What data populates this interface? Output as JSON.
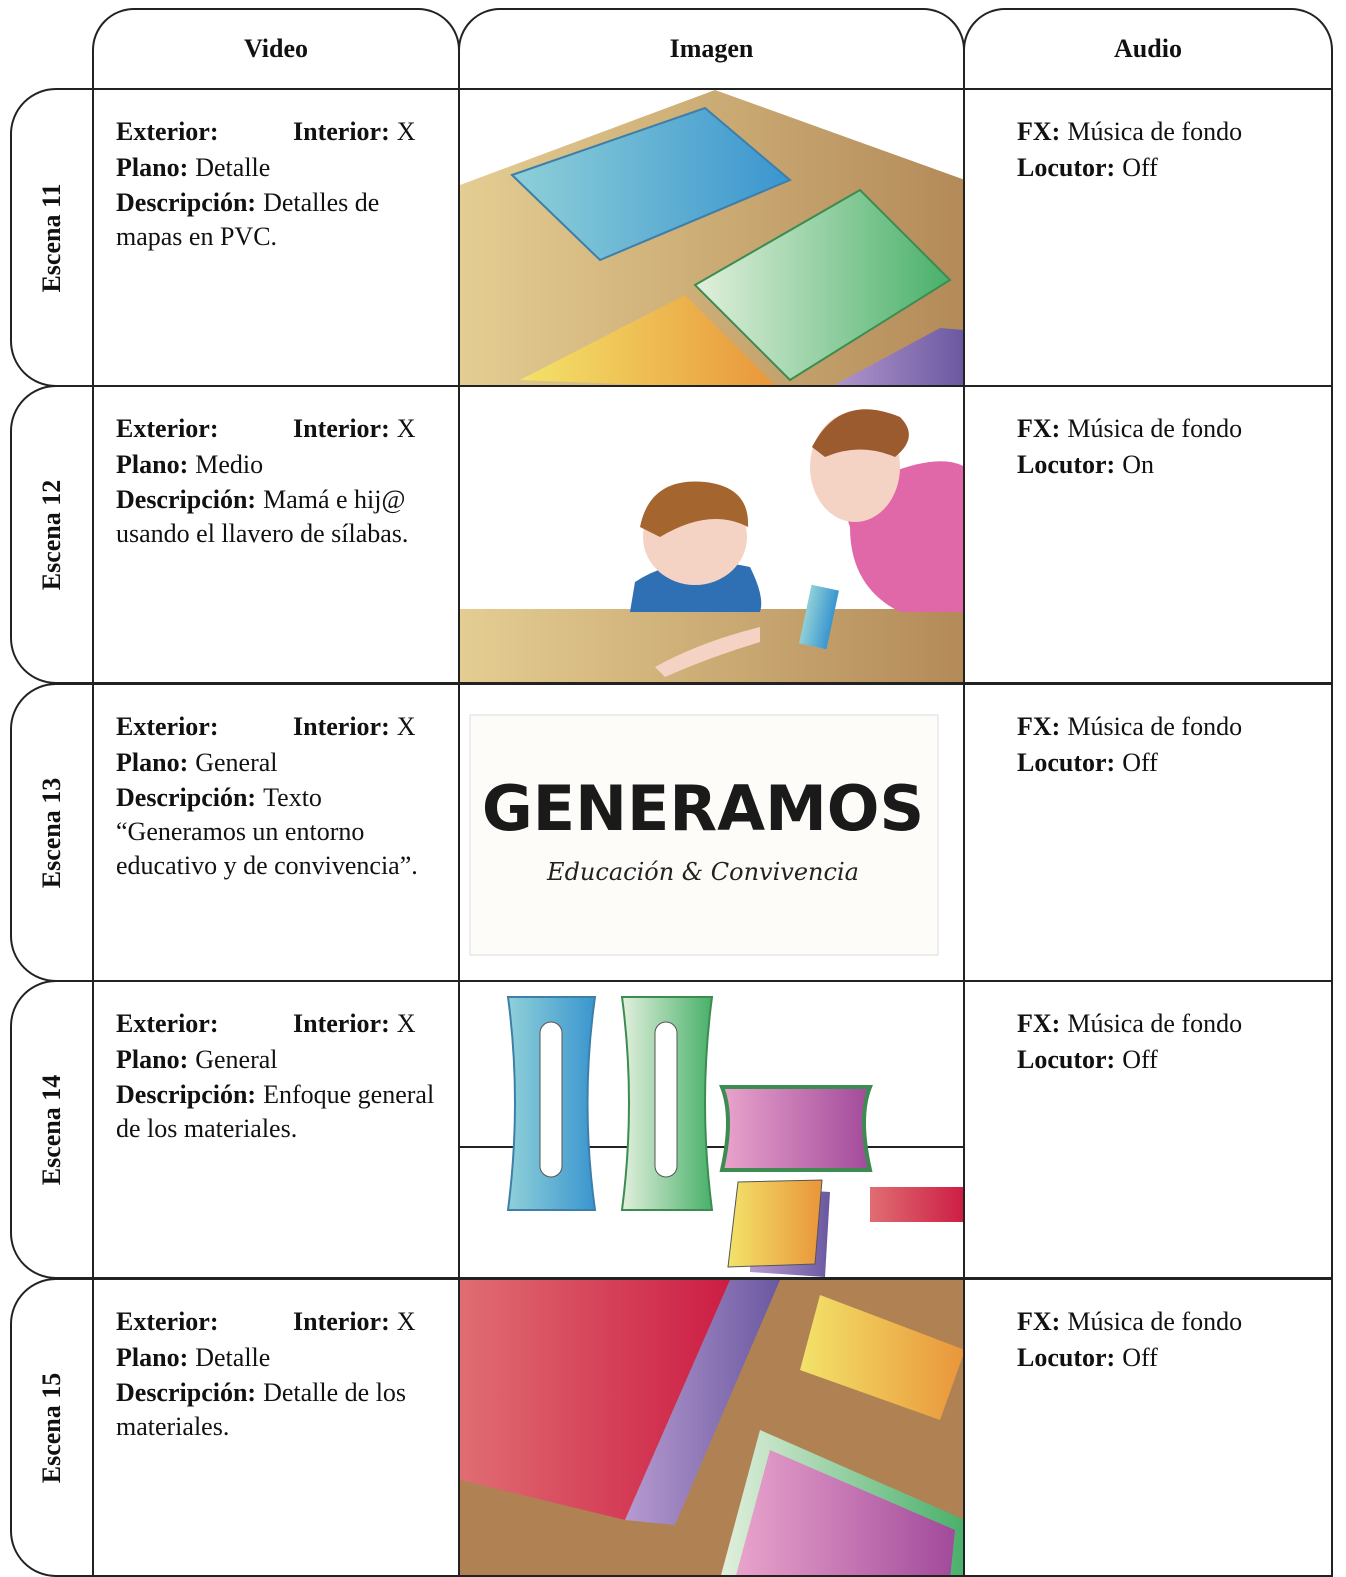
{
  "header": {
    "video": "Video",
    "imagen": "Imagen",
    "audio": "Audio"
  },
  "scenes": [
    {
      "label": "Escena 11",
      "video": {
        "exterior_label": "Exterior:",
        "interior_label": "Interior:",
        "interior": "X",
        "plano_label": "Plano:",
        "plano": "Detalle",
        "descripcion_label": "Descripción:",
        "descripcion": "Detalles de mapas en PVC."
      },
      "audio": {
        "fx_label": "FX:",
        "fx": "Música de fondo",
        "locutor_label": "Locutor:",
        "locutor": "Off"
      }
    },
    {
      "label": "Escena 12",
      "video": {
        "exterior_label": "Exterior:",
        "interior_label": "Interior:",
        "interior": "X",
        "plano_label": "Plano:",
        "plano": "Medio",
        "descripcion_label": "Descripción:",
        "descripcion": "Mamá e hij@ usando el llavero de sílabas."
      },
      "audio": {
        "fx_label": "FX:",
        "fx": "Música de fondo",
        "locutor_label": "Locutor:",
        "locutor": "On"
      }
    },
    {
      "label": "Escena 13",
      "video": {
        "exterior_label": "Exterior:",
        "interior_label": "Interior:",
        "interior": "X",
        "plano_label": "Plano:",
        "plano": "General",
        "descripcion_label": "Descripción:",
        "descripcion": "Texto “Generamos un entorno educativo y de convivencia”."
      },
      "audio": {
        "fx_label": "FX:",
        "fx": "Música de fondo",
        "locutor_label": "Locutor:",
        "locutor": "Off"
      },
      "image_text": {
        "title": "GENERAMOS",
        "subtitle": "Educación & Convivencia"
      }
    },
    {
      "label": "Escena 14",
      "video": {
        "exterior_label": "Exterior:",
        "interior_label": "Interior:",
        "interior": "X",
        "plano_label": "Plano:",
        "plano": "General",
        "descripcion_label": "Descripción:",
        "descripcion": "Enfoque general de los materiales."
      },
      "audio": {
        "fx_label": "FX:",
        "fx": "Música de fondo",
        "locutor_label": "Locutor:",
        "locutor": "Off"
      }
    },
    {
      "label": "Escena 15",
      "video": {
        "exterior_label": "Exterior:",
        "interior_label": "Interior:",
        "interior": "X",
        "plano_label": "Plano:",
        "plano": "Detalle",
        "descripcion_label": "Descripción:",
        "descripcion": "Detalle de los materiales."
      },
      "audio": {
        "fx_label": "FX:",
        "fx": "Música de fondo",
        "locutor_label": "Locutor:",
        "locutor": "Off"
      }
    }
  ]
}
